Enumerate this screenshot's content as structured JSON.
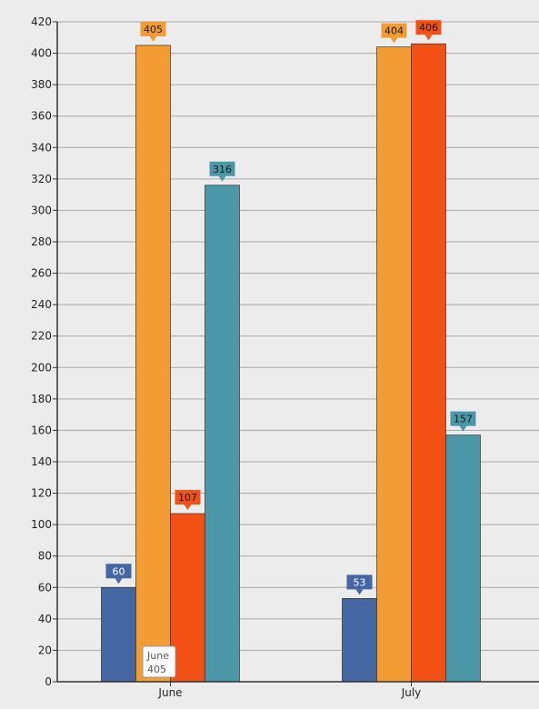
{
  "chart_data": {
    "type": "bar",
    "categories": [
      "June",
      "July"
    ],
    "series": [
      {
        "color": "#4466a3",
        "values": [
          60,
          53
        ]
      },
      {
        "color": "#f39c33",
        "values": [
          405,
          404
        ]
      },
      {
        "color": "#f25015",
        "values": [
          107,
          406
        ]
      },
      {
        "color": "#4b97a8",
        "values": [
          316,
          157
        ]
      }
    ],
    "ylim": [
      0,
      420
    ],
    "ytick_step": 20,
    "grid": true,
    "data_labels": true,
    "title": "",
    "xlabel": "",
    "ylabel": ""
  },
  "tooltip": {
    "category": "June",
    "value": "405"
  }
}
